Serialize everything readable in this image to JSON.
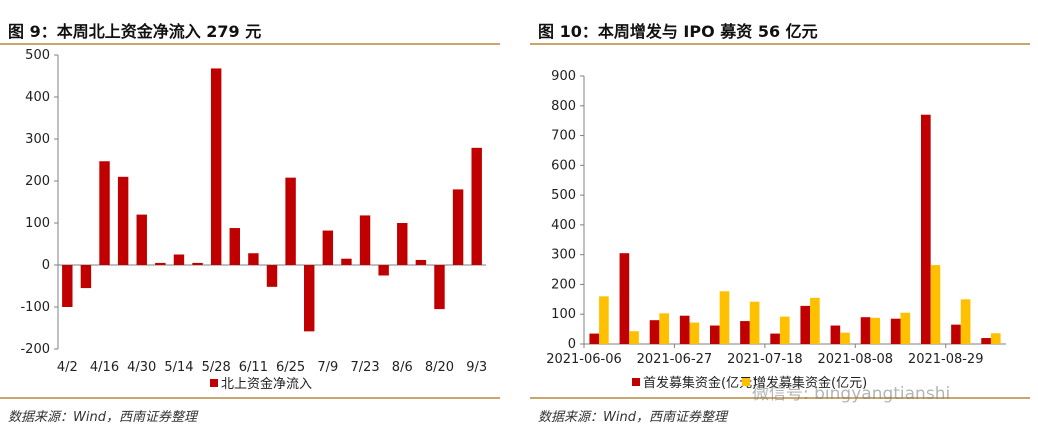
{
  "left": {
    "title": "图 9：本周北上资金净流入 279 元",
    "source": "数据来源：Wind，西南证券整理"
  },
  "right": {
    "title": "图 10：本周增发与 IPO 募资 56 亿元",
    "source": "数据来源：Wind，西南证券整理"
  },
  "watermark": "微信号: bingyangtianshi",
  "colors": {
    "red": "#c00000",
    "yellow": "#ffc000",
    "rule": "#c8a66e"
  },
  "chart_data": [
    {
      "type": "bar",
      "title": "图 9：本周北上资金净流入 279 元",
      "xlabel": "",
      "ylabel": "",
      "ylim": [
        -200,
        500
      ],
      "yticks": [
        -200,
        -100,
        0,
        100,
        200,
        300,
        400,
        500
      ],
      "x_tick_labels": [
        "4/2",
        "4/16",
        "4/30",
        "5/14",
        "5/28",
        "6/11",
        "6/25",
        "7/9",
        "7/23",
        "8/6",
        "8/20",
        "9/3"
      ],
      "x": [
        "4/2",
        "4/9",
        "4/16",
        "4/23",
        "4/30",
        "5/7",
        "5/14",
        "5/21",
        "5/28",
        "6/4",
        "6/11",
        "6/18",
        "6/25",
        "7/2",
        "7/9",
        "7/16",
        "7/23",
        "7/30",
        "8/6",
        "8/13",
        "8/20",
        "8/27",
        "9/3"
      ],
      "series": [
        {
          "name": "北上资金净流入",
          "color": "#c00000",
          "values": [
            -100,
            -55,
            247,
            210,
            120,
            5,
            25,
            5,
            468,
            88,
            28,
            -52,
            208,
            -158,
            82,
            15,
            118,
            -25,
            100,
            12,
            -105,
            180,
            279
          ]
        }
      ],
      "legend": "bottom-center"
    },
    {
      "type": "bar",
      "title": "图 10：本周增发与 IPO 募资 56 亿元",
      "xlabel": "",
      "ylabel": "",
      "ylim": [
        0,
        900
      ],
      "yticks": [
        0,
        100,
        200,
        300,
        400,
        500,
        600,
        700,
        800,
        900
      ],
      "x_tick_labels": [
        "2021-06-06",
        "2021-06-27",
        "2021-07-18",
        "2021-08-08",
        "2021-08-29"
      ],
      "x": [
        "2021-06-06",
        "2021-06-13",
        "2021-06-20",
        "2021-06-27",
        "2021-07-04",
        "2021-07-11",
        "2021-07-18",
        "2021-07-25",
        "2021-08-01",
        "2021-08-08",
        "2021-08-15",
        "2021-08-22",
        "2021-08-29",
        "2021-09-05"
      ],
      "series": [
        {
          "name": "首发募集资金(亿元)",
          "color": "#c00000",
          "values": [
            35,
            305,
            80,
            95,
            62,
            77,
            35,
            128,
            62,
            90,
            85,
            770,
            65,
            20
          ]
        },
        {
          "name": "增发募集资金(亿元)",
          "color": "#ffc000",
          "values": [
            160,
            43,
            103,
            72,
            177,
            142,
            92,
            155,
            38,
            88,
            105,
            265,
            150,
            36
          ]
        }
      ],
      "legend": "bottom-center"
    }
  ]
}
